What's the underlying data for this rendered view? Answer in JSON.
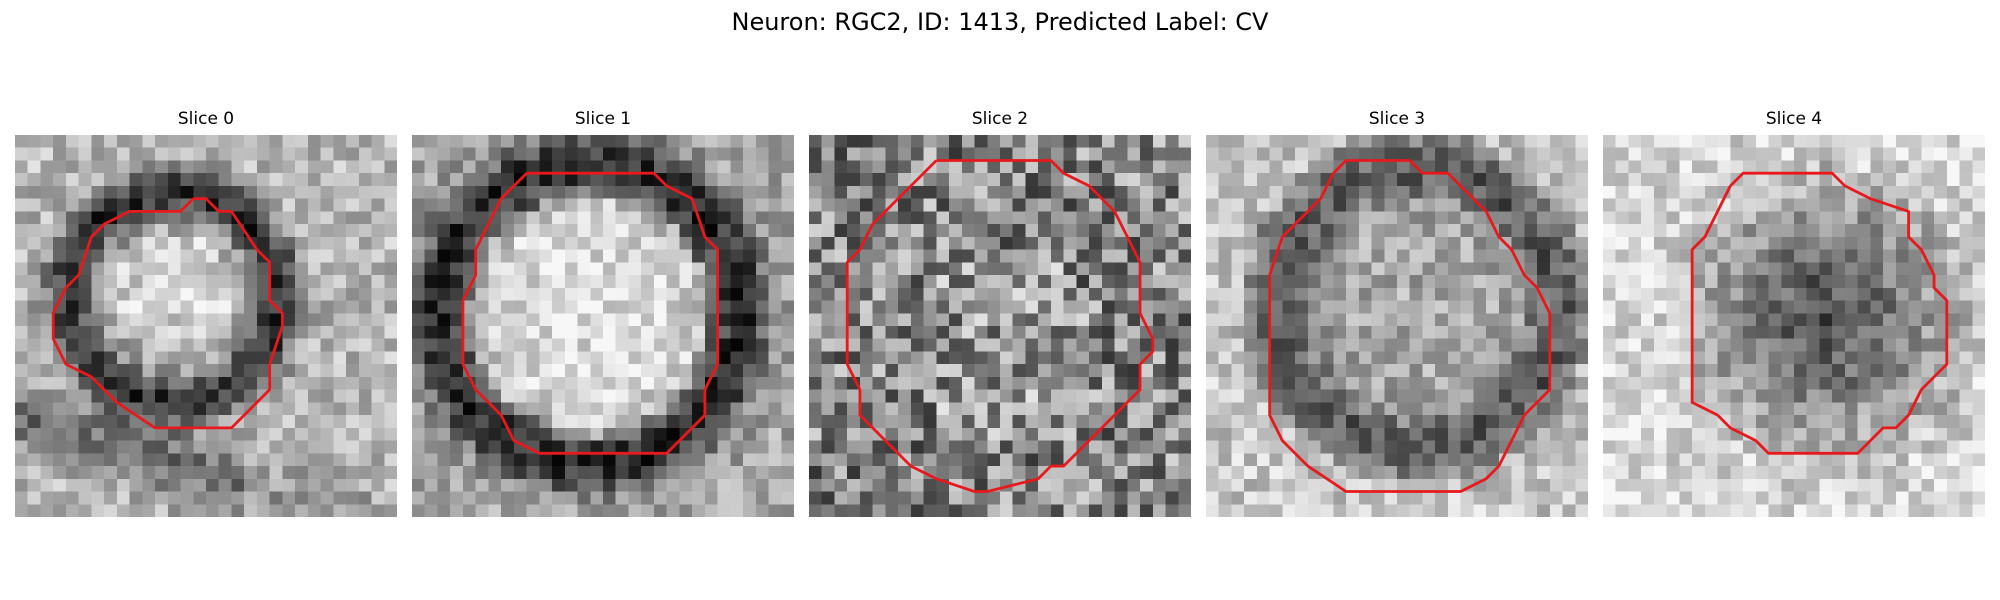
{
  "figure": {
    "title": "Neuron: RGC2, ID: 1413, Predicted Label: CV",
    "contour_color": "#e8191c",
    "grid_size": 30,
    "panels": [
      {
        "title": "Slice 0",
        "pattern": "ring",
        "seed": 11,
        "contour": [
          [
            14,
            5
          ],
          [
            13,
            6
          ],
          [
            9,
            6
          ],
          [
            7,
            7
          ],
          [
            6,
            8
          ],
          [
            5,
            11
          ],
          [
            4,
            12
          ],
          [
            3,
            14
          ],
          [
            3,
            16
          ],
          [
            4,
            18
          ],
          [
            6,
            19
          ],
          [
            8,
            21
          ],
          [
            11,
            23
          ],
          [
            17,
            23
          ],
          [
            20,
            20
          ],
          [
            20,
            18
          ],
          [
            21,
            15
          ],
          [
            21,
            14
          ],
          [
            20,
            13
          ],
          [
            20,
            10
          ],
          [
            19,
            9
          ],
          [
            17,
            6
          ],
          [
            16,
            6
          ],
          [
            15,
            5
          ]
        ],
        "dark_band": [
          [
            7,
            7
          ],
          [
            20,
            10
          ],
          [
            4,
            17
          ],
          [
            12,
            20
          ],
          [
            22,
            18
          ]
        ]
      },
      {
        "title": "Slice 1",
        "pattern": "bright-ellipse",
        "seed": 23,
        "contour": [
          [
            9,
            3
          ],
          [
            19,
            3
          ],
          [
            20,
            4
          ],
          [
            22,
            5
          ],
          [
            23,
            8
          ],
          [
            24,
            9
          ],
          [
            24,
            15
          ],
          [
            24,
            18
          ],
          [
            23,
            20
          ],
          [
            23,
            22
          ],
          [
            22,
            23
          ],
          [
            21,
            24
          ],
          [
            20,
            25
          ],
          [
            10,
            25
          ],
          [
            8,
            24
          ],
          [
            7,
            22
          ],
          [
            5,
            20
          ],
          [
            4,
            18
          ],
          [
            4,
            15
          ],
          [
            4,
            13
          ],
          [
            5,
            11
          ],
          [
            5,
            9
          ],
          [
            6,
            7
          ],
          [
            7,
            5
          ],
          [
            9,
            3
          ]
        ]
      },
      {
        "title": "Slice 2",
        "pattern": "noisy",
        "seed": 37,
        "contour": [
          [
            10,
            2
          ],
          [
            19,
            2
          ],
          [
            20,
            3
          ],
          [
            22,
            4
          ],
          [
            24,
            6
          ],
          [
            25,
            8
          ],
          [
            26,
            10
          ],
          [
            26,
            14
          ],
          [
            27,
            16
          ],
          [
            27,
            17
          ],
          [
            26,
            18
          ],
          [
            26,
            20
          ],
          [
            25,
            21
          ],
          [
            23,
            23
          ],
          [
            22,
            24
          ],
          [
            21,
            25
          ],
          [
            20,
            26
          ],
          [
            19,
            26
          ],
          [
            18,
            27
          ],
          [
            14,
            28
          ],
          [
            13,
            28
          ],
          [
            10,
            27
          ],
          [
            8,
            26
          ],
          [
            7,
            25
          ],
          [
            6,
            24
          ],
          [
            5,
            23
          ],
          [
            4,
            22
          ],
          [
            4,
            20
          ],
          [
            3,
            18
          ],
          [
            3,
            15
          ],
          [
            3,
            10
          ],
          [
            4,
            9
          ],
          [
            5,
            7
          ],
          [
            7,
            5
          ],
          [
            8,
            4
          ],
          [
            10,
            2
          ]
        ]
      },
      {
        "title": "Slice 3",
        "pattern": "dark-ring",
        "seed": 53,
        "contour": [
          [
            10,
            3
          ],
          [
            11,
            2
          ],
          [
            16,
            2
          ],
          [
            17,
            3
          ],
          [
            19,
            3
          ],
          [
            20,
            4
          ],
          [
            21,
            5
          ],
          [
            22,
            6
          ],
          [
            23,
            8
          ],
          [
            24,
            9
          ],
          [
            25,
            11
          ],
          [
            26,
            12
          ],
          [
            27,
            14
          ],
          [
            27,
            18
          ],
          [
            27,
            20
          ],
          [
            26,
            21
          ],
          [
            25,
            22
          ],
          [
            24,
            24
          ],
          [
            23,
            26
          ],
          [
            22,
            27
          ],
          [
            20,
            28
          ],
          [
            11,
            28
          ],
          [
            8,
            26
          ],
          [
            6,
            24
          ],
          [
            5,
            22
          ],
          [
            5,
            19
          ],
          [
            5,
            13
          ],
          [
            5,
            11
          ],
          [
            6,
            8
          ],
          [
            7,
            7
          ],
          [
            9,
            5
          ],
          [
            10,
            3
          ]
        ]
      },
      {
        "title": "Slice 4",
        "pattern": "dark-core",
        "seed": 71,
        "contour": [
          [
            10,
            4
          ],
          [
            11,
            3
          ],
          [
            18,
            3
          ],
          [
            19,
            4
          ],
          [
            21,
            5
          ],
          [
            24,
            6
          ],
          [
            24,
            8
          ],
          [
            25,
            9
          ],
          [
            26,
            11
          ],
          [
            26,
            12
          ],
          [
            27,
            13
          ],
          [
            27,
            18
          ],
          [
            26,
            19
          ],
          [
            25,
            20
          ],
          [
            24,
            22
          ],
          [
            23,
            23
          ],
          [
            22,
            23
          ],
          [
            21,
            24
          ],
          [
            20,
            25
          ],
          [
            13,
            25
          ],
          [
            12,
            24
          ],
          [
            10,
            23
          ],
          [
            9,
            22
          ],
          [
            7,
            21
          ],
          [
            7,
            19
          ],
          [
            7,
            9
          ],
          [
            8,
            8
          ],
          [
            9,
            6
          ],
          [
            10,
            4
          ]
        ]
      }
    ]
  }
}
